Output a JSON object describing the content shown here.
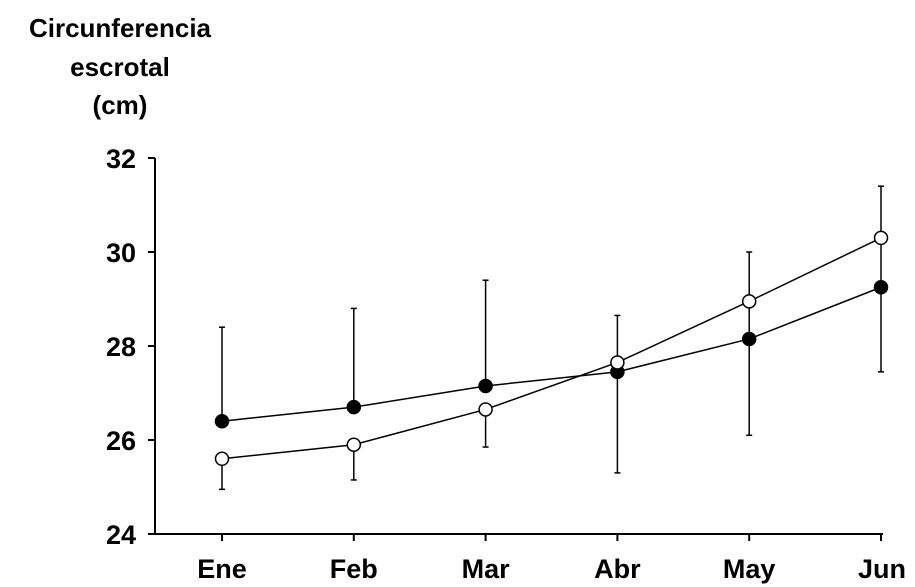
{
  "chart_data": {
    "type": "line",
    "ylabel_lines": [
      "Circunferencia",
      "escrotal",
      "(cm)"
    ],
    "xlabel": "",
    "categories": [
      "Ene",
      "Feb",
      "Mar",
      "Abr",
      "May",
      "Jun"
    ],
    "ylim": [
      24,
      32
    ],
    "yticks": [
      24,
      26,
      28,
      30,
      32
    ],
    "grid": false,
    "series": [
      {
        "marker": "filled-circle",
        "color": "#000000",
        "values": [
          26.4,
          26.7,
          27.15,
          27.45,
          28.15,
          29.25
        ],
        "error_upper": [
          28.4,
          28.8,
          29.4,
          28.65,
          30.0,
          31.4
        ],
        "error_lower": [
          26.4,
          26.7,
          27.15,
          25.3,
          26.1,
          27.45
        ]
      },
      {
        "marker": "open-circle",
        "color": "#000000",
        "values": [
          25.6,
          25.9,
          26.65,
          27.65,
          28.95,
          30.3
        ],
        "error_upper": [
          25.6,
          25.9,
          26.65,
          27.65,
          28.95,
          30.3
        ],
        "error_lower": [
          24.95,
          25.15,
          25.85,
          27.65,
          28.95,
          30.3
        ]
      }
    ]
  }
}
